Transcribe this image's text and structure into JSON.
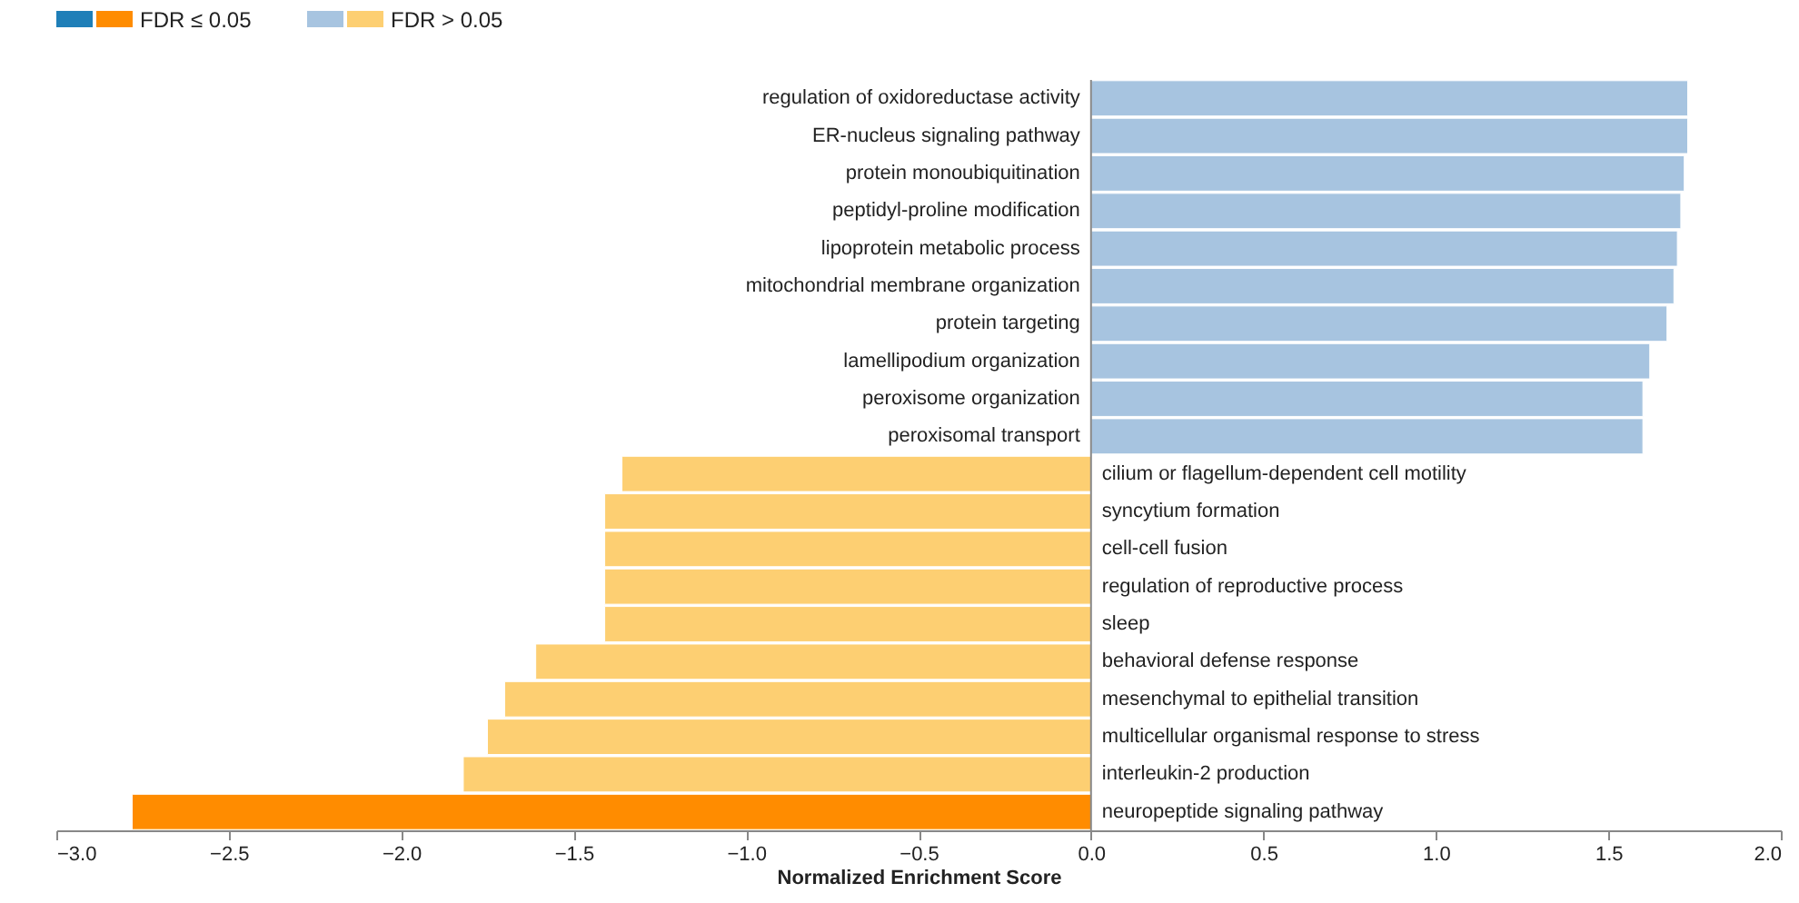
{
  "chart_data": {
    "type": "bar",
    "orientation": "horizontal",
    "xlabel": "Normalized Enrichment Score",
    "legend": "top left",
    "grid": false,
    "tick_labels": "x",
    "categories": [
      "regulation of oxidoreductase activity",
      "ER-nucleus signaling pathway",
      "protein monoubiquitination",
      "peptidyl-proline modification",
      "lipoprotein metabolic process",
      "mitochondrial membrane organization",
      "protein targeting",
      "lamellipodium organization",
      "peroxisome organization",
      "peroxisomal transport",
      "cilium or flagellum-dependent cell motility",
      "syncytium formation",
      "cell-cell fusion",
      "regulation of reproductive process",
      "sleep",
      "behavioral defense response",
      "mesenchymal to epithelial transition",
      "multicellular organismal response to stress",
      "interleukin-2 production",
      "neuropeptide signaling pathway"
    ],
    "series": [
      {
        "name": "FDR ≤ 0.05",
        "color": "#1f7fb8",
        "colors": [
          "#1f7fb8",
          "#1f7fb8",
          "#1f7fb8",
          "#1f7fb8",
          "#1f7fb8",
          "#1f7fb8",
          "#1f7fb8",
          "#1f7fb8",
          "#1f7fb8",
          "#1f7fb8",
          "#ff8c00",
          "#ff8c00",
          "#ff8c00",
          "#ff8c00",
          "#ff8c00",
          "#ff8c00",
          "#ff8c00",
          "#ff8c00",
          "#ff8c00",
          "#ff8c00"
        ],
        "values": [
          null,
          null,
          null,
          null,
          null,
          null,
          null,
          null,
          null,
          null,
          null,
          null,
          null,
          null,
          null,
          null,
          null,
          null,
          null,
          -2.78
        ]
      },
      {
        "name": "FDR > 0.05",
        "color": "#a7c4e0",
        "colors": [
          "#a7c4e0",
          "#a7c4e0",
          "#a7c4e0",
          "#a7c4e0",
          "#a7c4e0",
          "#a7c4e0",
          "#a7c4e0",
          "#a7c4e0",
          "#a7c4e0",
          "#a7c4e0",
          "#fdcf72",
          "#fdcf72",
          "#fdcf72",
          "#fdcf72",
          "#fdcf72",
          "#fdcf72",
          "#fdcf72",
          "#fdcf72",
          "#fdcf72",
          "#fdcf72"
        ],
        "values": [
          1.73,
          1.73,
          1.72,
          1.71,
          1.7,
          1.69,
          1.67,
          1.62,
          1.6,
          1.6,
          -1.36,
          -1.41,
          -1.41,
          -1.41,
          -1.41,
          -1.61,
          -1.7,
          -1.75,
          -1.82,
          null
        ]
      }
    ],
    "xlim": [
      -3.0,
      2.0
    ],
    "xticks": [
      {
        "value": -3.0,
        "label": "−3.0"
      },
      {
        "value": -2.5,
        "label": "−2.5"
      },
      {
        "value": -2.0,
        "label": "−2.0"
      },
      {
        "value": -1.5,
        "label": "−1.5"
      },
      {
        "value": -1.0,
        "label": "−1.0"
      },
      {
        "value": -0.5,
        "label": "−0.5"
      },
      {
        "value": 0.0,
        "label": "0.0"
      },
      {
        "value": 0.5,
        "label": "0.5"
      },
      {
        "value": 1.0,
        "label": "1.0"
      },
      {
        "value": 1.5,
        "label": "1.5"
      },
      {
        "value": 2.0,
        "label": "2.0"
      }
    ]
  }
}
